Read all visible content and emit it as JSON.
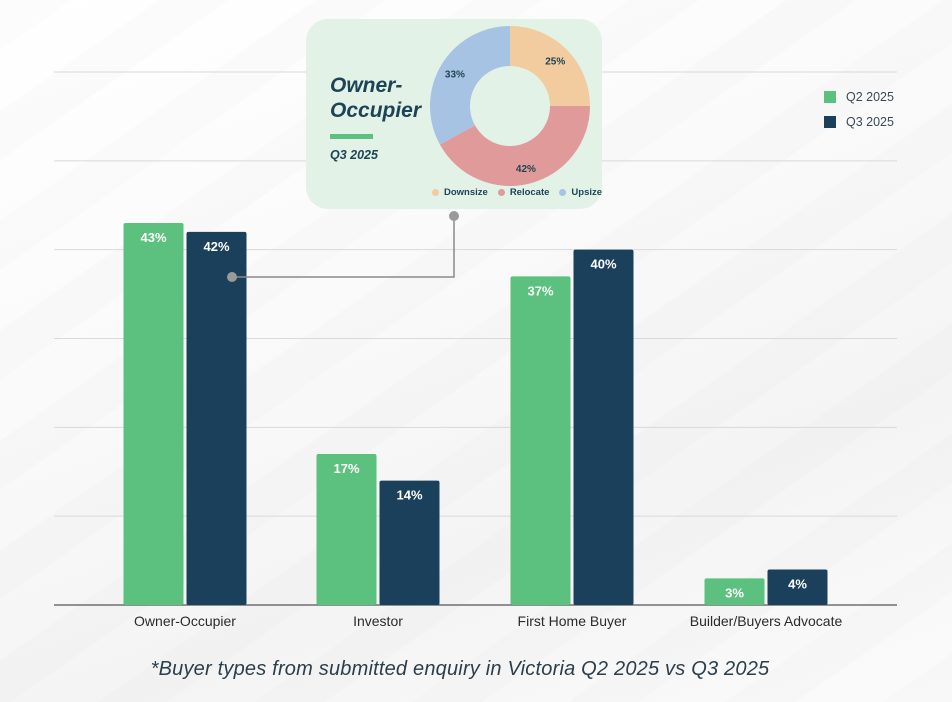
{
  "chart_data": {
    "type": "bar",
    "title": "",
    "xlabel": "",
    "ylabel": "",
    "ylim": [
      0,
      60
    ],
    "grid": true,
    "gridlines_at": [
      10,
      20,
      30,
      40,
      50,
      60
    ],
    "legend_position": "top-right",
    "categories": [
      "Owner-Occupier",
      "Investor",
      "First Home Buyer",
      "Builder/Buyers Advocate"
    ],
    "series": [
      {
        "name": "Q2 2025",
        "color": "#5cc07e",
        "values": [
          43,
          17,
          37,
          3
        ],
        "labels": [
          "43%",
          "17%",
          "37%",
          "3%"
        ]
      },
      {
        "name": "Q3 2025",
        "color": "#1b405c",
        "values": [
          42,
          14,
          40,
          4
        ],
        "labels": [
          "42%",
          "14%",
          "40%",
          "4%"
        ]
      }
    ],
    "caption": "*Buyer types from submitted enquiry in Victoria Q2 2025 vs Q3 2025",
    "inset": {
      "type": "pie",
      "title_line1": "Owner-",
      "title_line2": "Occupier",
      "subtitle": "Q3 2025",
      "annotates": "Owner-Occupier Q3 2025",
      "slices": [
        {
          "name": "Downsize",
          "value": 25,
          "label": "25%",
          "color": "#f2cb9e"
        },
        {
          "name": "Relocate",
          "value": 42,
          "label": "42%",
          "color": "#e09a9a"
        },
        {
          "name": "Upsize",
          "value": 33,
          "label": "33%",
          "color": "#a7c3e3"
        }
      ]
    }
  },
  "legend": {
    "items": [
      {
        "label": "Q2 2025",
        "color": "#5cc07e"
      },
      {
        "label": "Q3 2025",
        "color": "#1b405c"
      }
    ]
  }
}
